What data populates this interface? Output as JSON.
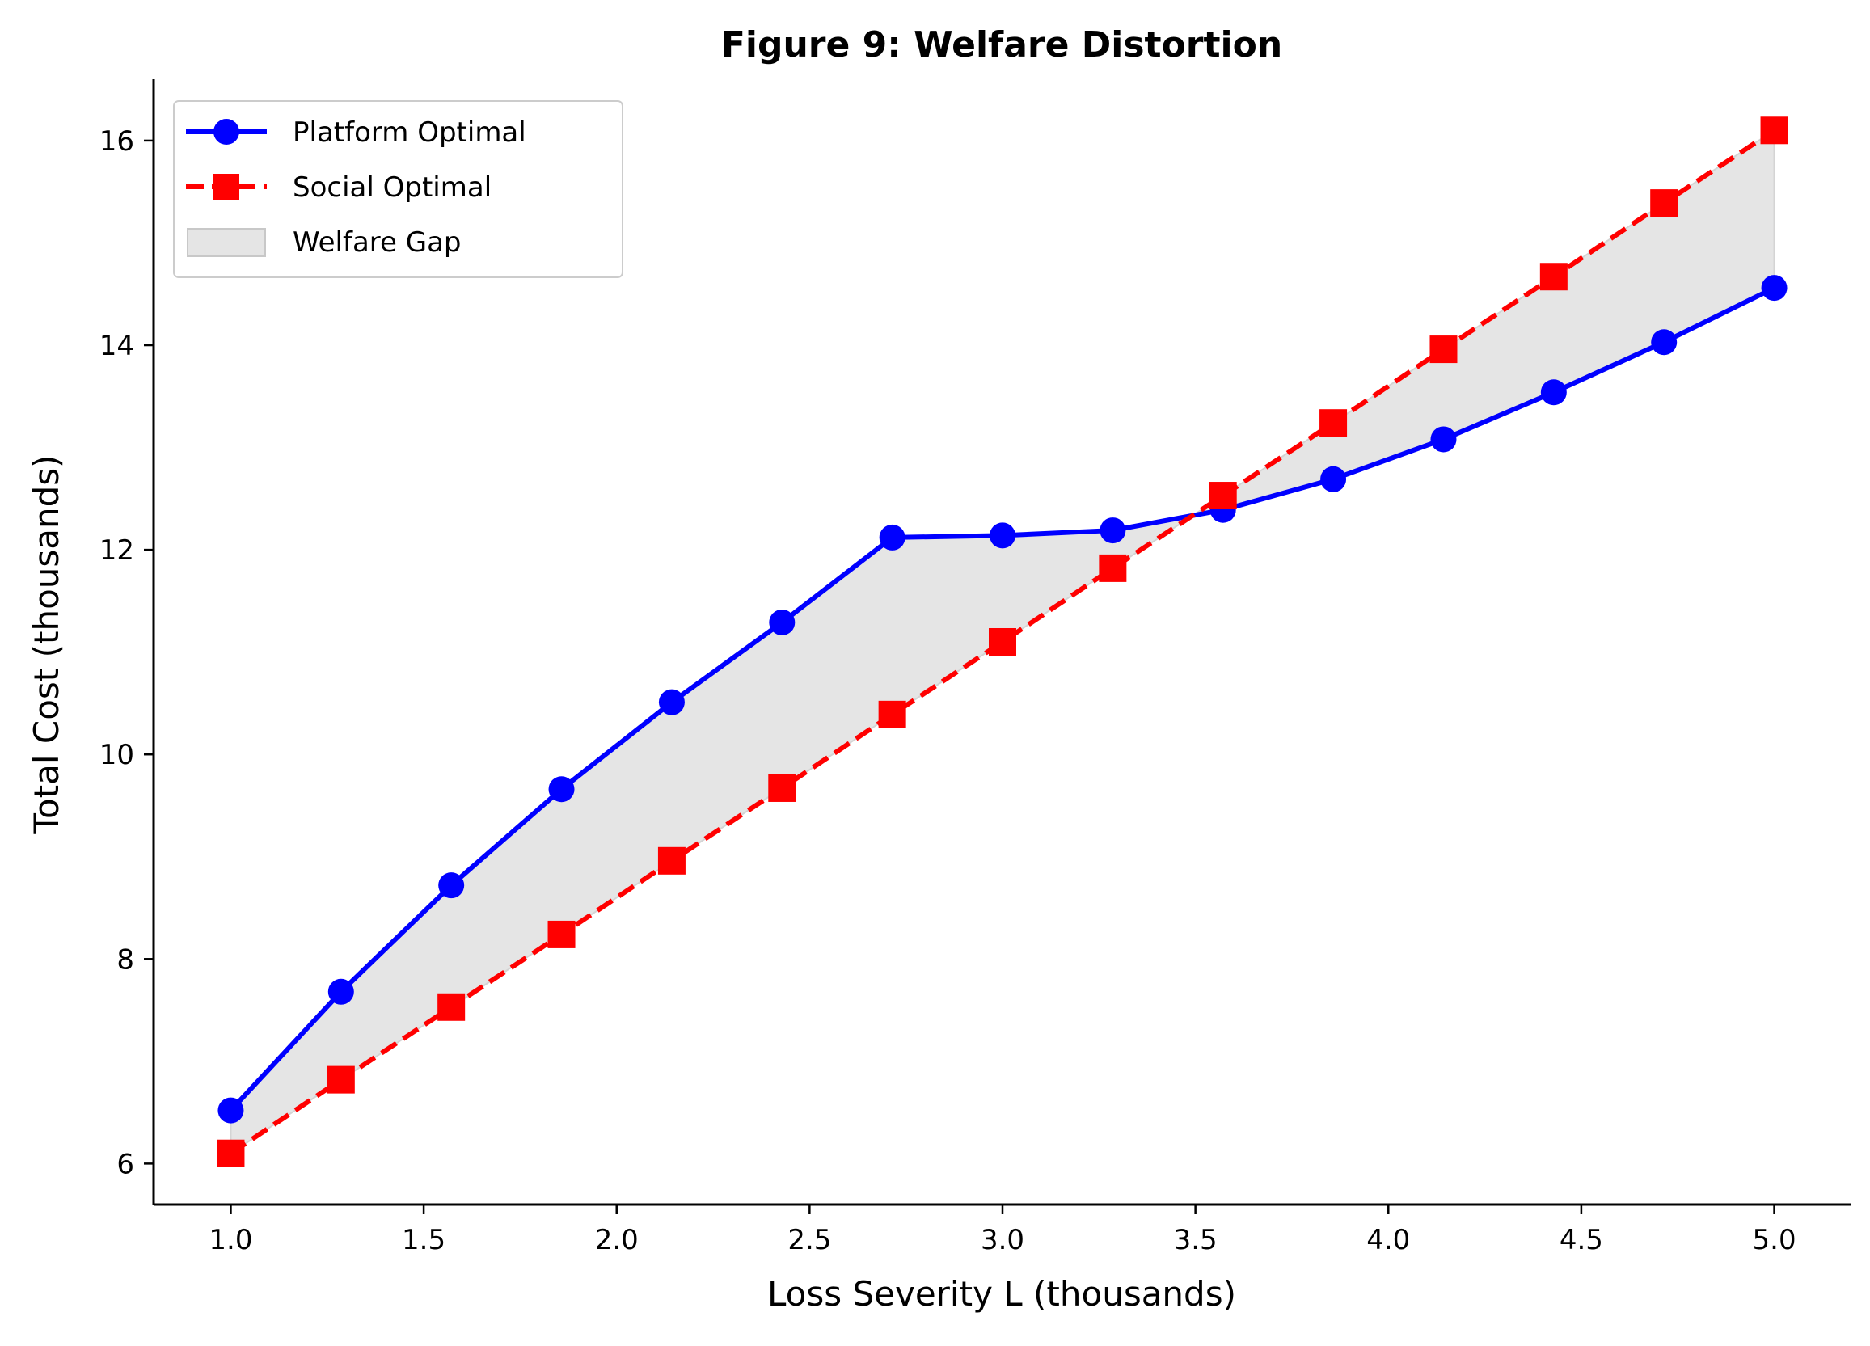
{
  "chart_data": {
    "type": "line",
    "title": "Figure 9: Welfare Distortion",
    "xlabel": "Loss Severity L (thousands)",
    "ylabel": "Total Cost (thousands)",
    "xlim": [
      0.8,
      5.2
    ],
    "ylim": [
      5.6,
      16.6
    ],
    "xticks": [
      1.0,
      1.5,
      2.0,
      2.5,
      3.0,
      3.5,
      4.0,
      4.5,
      5.0
    ],
    "xtick_labels": [
      "1.0",
      "1.5",
      "2.0",
      "2.5",
      "3.0",
      "3.5",
      "4.0",
      "4.5",
      "5.0"
    ],
    "yticks": [
      6,
      8,
      10,
      12,
      14,
      16
    ],
    "ytick_labels": [
      "6",
      "8",
      "10",
      "12",
      "14",
      "16"
    ],
    "grid": false,
    "legend_position": "top-left",
    "x": [
      1.0,
      1.2857,
      1.5714,
      1.8571,
      2.1429,
      2.4286,
      2.7143,
      3.0,
      3.2857,
      3.5714,
      3.8571,
      4.1429,
      4.4286,
      4.7143,
      5.0
    ],
    "series": [
      {
        "name": "Platform Optimal",
        "color": "#0000ff",
        "line_style": "solid",
        "marker": "circle",
        "values": [
          6.52,
          7.68,
          8.72,
          9.66,
          10.51,
          11.29,
          12.12,
          12.14,
          12.19,
          12.39,
          12.69,
          13.08,
          13.54,
          14.03,
          14.56
        ]
      },
      {
        "name": "Social Optimal",
        "color": "#ff0000",
        "line_style": "dashed",
        "marker": "square",
        "values": [
          6.1,
          6.82,
          7.53,
          8.24,
          8.96,
          9.67,
          10.39,
          11.1,
          11.82,
          12.53,
          13.24,
          13.96,
          14.67,
          15.39,
          16.1
        ]
      }
    ],
    "fill": {
      "name": "Welfare Gap",
      "color": "#e5e5e5",
      "between": [
        "Platform Optimal",
        "Social Optimal"
      ]
    }
  }
}
